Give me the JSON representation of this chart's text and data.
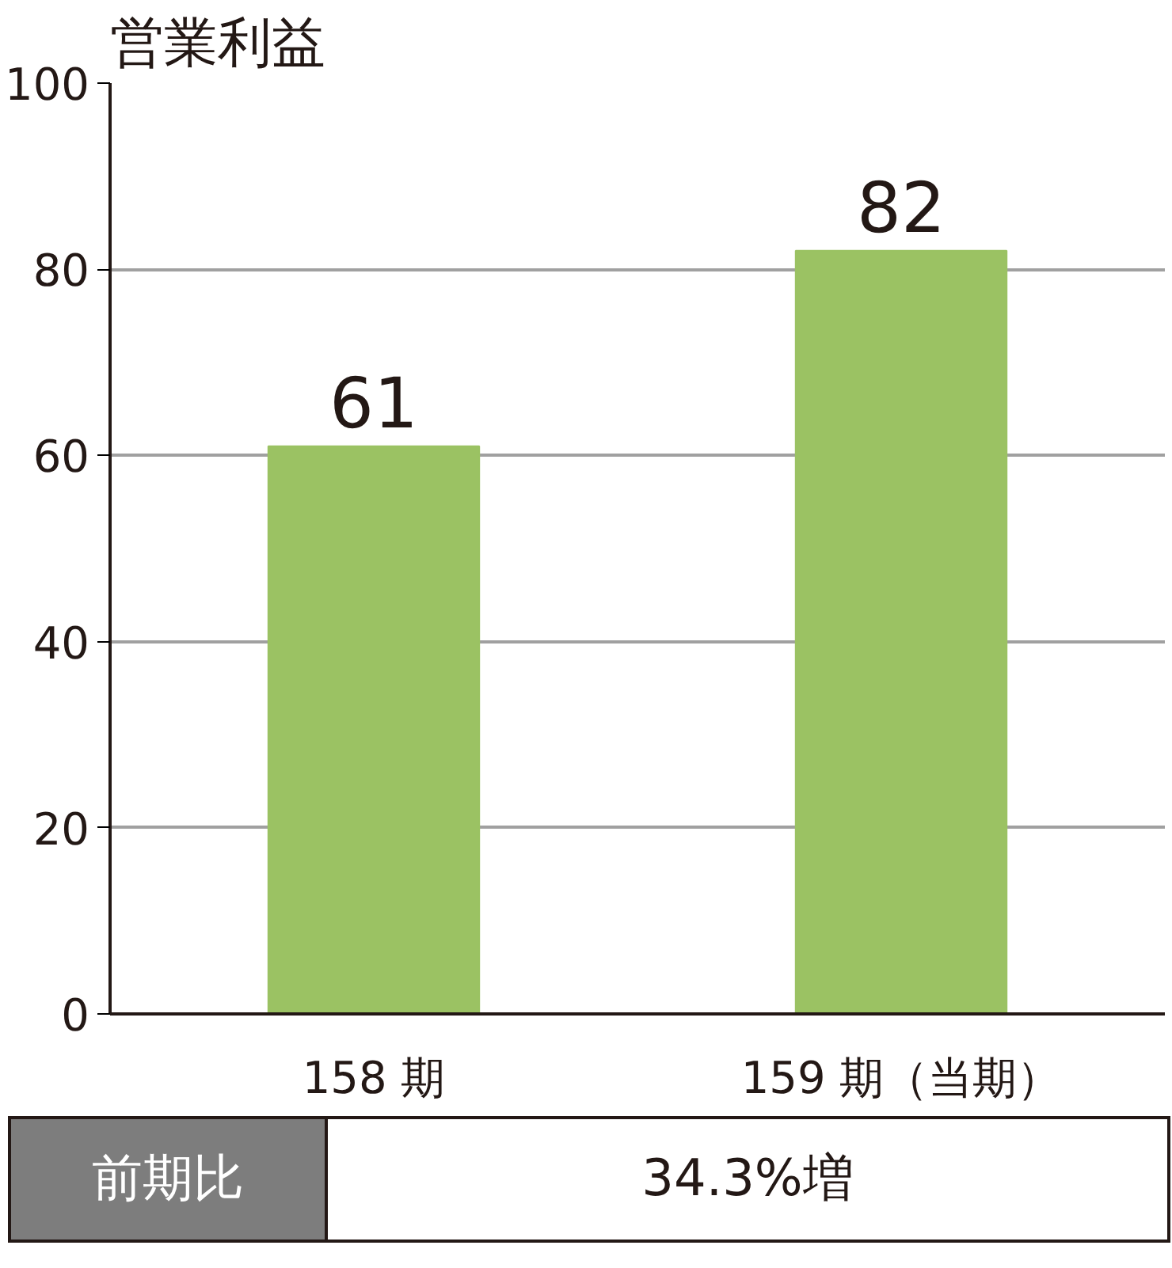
{
  "chart_data": {
    "type": "bar",
    "title": "営業利益",
    "categories": [
      "158 期",
      "159 期（当期）"
    ],
    "values": [
      61,
      82
    ],
    "color": "#9bc263",
    "ylim": [
      0,
      100
    ],
    "yticks": [
      0,
      20,
      40,
      60,
      80,
      100
    ],
    "grid": "y",
    "data_labels": true,
    "annotations": [
      "前期比",
      "34.3%増"
    ]
  }
}
